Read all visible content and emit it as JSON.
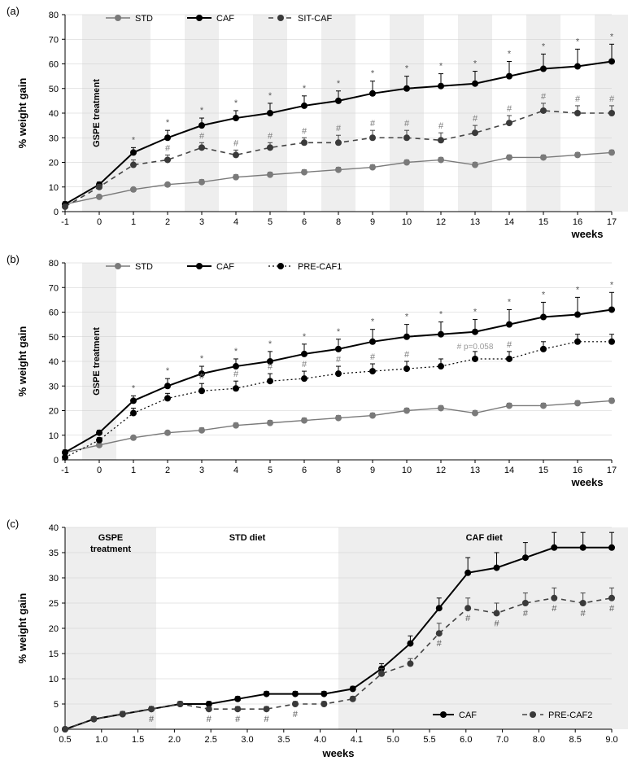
{
  "global": {
    "font_family": "Arial",
    "bg_color": "#ffffff",
    "axis_color": "#000000",
    "gridline_color": "#cccccc",
    "band_color": "#eeeeee",
    "marker_size": 4,
    "line_width": 1.8,
    "error_cap": 4
  },
  "panels": {
    "a": {
      "label": "(a)",
      "chart_type": "line",
      "x_title": "weeks",
      "y_title": "% weight gain",
      "x_ticks": [
        "-1",
        "0",
        "1",
        "2",
        "3",
        "4",
        "5",
        "6",
        "8",
        "9",
        "10",
        "12",
        "13",
        "14",
        "15",
        "16",
        "17"
      ],
      "y_ticks": [
        0,
        10,
        20,
        30,
        40,
        50,
        60,
        70,
        80
      ],
      "ylim": [
        0,
        80
      ],
      "alt_bands_start_idx": 1,
      "gspe_band_idx": [
        1,
        2
      ],
      "gspe_label": "GSPE treatment",
      "legend": [
        {
          "key": "STD",
          "label": "STD",
          "style": "solid",
          "color": "#7a7a7a",
          "weight": 1.4,
          "marker": "circle",
          "marker_fill": "#7a7a7a"
        },
        {
          "key": "CAF",
          "label": "CAF",
          "style": "solid",
          "color": "#000000",
          "weight": 2.0,
          "marker": "circle",
          "marker_fill": "#000000"
        },
        {
          "key": "SITCAF",
          "label": "SIT-CAF",
          "style": "dash",
          "color": "#444444",
          "weight": 1.6,
          "marker": "circle",
          "marker_fill": "#3a3a3a"
        }
      ],
      "series": {
        "STD": {
          "y": [
            3,
            6,
            9,
            11,
            12,
            14,
            15,
            16,
            17,
            18,
            20,
            21,
            19,
            22,
            22,
            23,
            24
          ],
          "err": [
            0.5,
            0.5,
            0.5,
            0.5,
            1,
            1,
            1,
            1,
            1,
            1,
            1,
            1,
            1,
            1,
            1,
            1,
            1
          ]
        },
        "CAF": {
          "y": [
            3,
            11,
            24,
            30,
            35,
            38,
            40,
            43,
            45,
            48,
            50,
            51,
            52,
            55,
            58,
            59,
            61
          ],
          "err": [
            1,
            1,
            2,
            3,
            3,
            3,
            4,
            4,
            4,
            5,
            5,
            5,
            5,
            6,
            6,
            7,
            7
          ]
        },
        "SITCAF": {
          "y": [
            2,
            10,
            19,
            21,
            26,
            23,
            26,
            28,
            28,
            30,
            30,
            29,
            32,
            36,
            41,
            40,
            40
          ],
          "err": [
            1,
            1,
            2,
            2,
            2,
            2,
            2,
            2,
            3,
            3,
            3,
            3,
            3,
            3,
            3,
            3,
            3
          ]
        }
      },
      "star_idx": [
        2,
        3,
        4,
        5,
        6,
        7,
        8,
        9,
        10,
        11,
        12,
        13,
        14,
        15,
        16
      ],
      "hash_idx": [
        3,
        4,
        5,
        6,
        7,
        8,
        9,
        10,
        11,
        12,
        13,
        14,
        15,
        16
      ],
      "star_char": "*",
      "hash_char": "#",
      "star_color": "#5a5a5a",
      "hash_color": "#7a7a7a"
    },
    "b": {
      "label": "(b)",
      "chart_type": "line",
      "x_title": "weeks",
      "y_title": "% weight gain",
      "x_ticks": [
        "-1",
        "0",
        "1",
        "2",
        "3",
        "4",
        "5",
        "6",
        "8",
        "9",
        "10",
        "12",
        "13",
        "14",
        "15",
        "16",
        "17"
      ],
      "y_ticks": [
        0,
        10,
        20,
        30,
        40,
        50,
        60,
        70,
        80
      ],
      "ylim": [
        0,
        80
      ],
      "gspe_band_idx": [
        1,
        2
      ],
      "gspe_label": "GSPE treatment",
      "legend": [
        {
          "key": "STD",
          "label": "STD",
          "style": "solid",
          "color": "#7a7a7a",
          "weight": 1.4,
          "marker": "circle",
          "marker_fill": "#7a7a7a"
        },
        {
          "key": "CAF",
          "label": "CAF",
          "style": "solid",
          "color": "#000000",
          "weight": 2.0,
          "marker": "circle",
          "marker_fill": "#000000"
        },
        {
          "key": "PRECAF1",
          "label": "PRE-CAF1",
          "style": "dot",
          "color": "#000000",
          "weight": 1.2,
          "marker": "circle",
          "marker_fill": "#000000"
        }
      ],
      "series": {
        "STD": {
          "y": [
            3,
            6,
            9,
            11,
            12,
            14,
            15,
            16,
            17,
            18,
            20,
            21,
            19,
            22,
            22,
            23,
            24
          ],
          "err": [
            0.5,
            0.5,
            0.5,
            0.5,
            1,
            1,
            1,
            1,
            1,
            1,
            1,
            1,
            1,
            1,
            1,
            1,
            1
          ]
        },
        "CAF": {
          "y": [
            3,
            11,
            24,
            30,
            35,
            38,
            40,
            43,
            45,
            48,
            50,
            51,
            52,
            55,
            58,
            59,
            61
          ],
          "err": [
            1,
            1,
            2,
            3,
            3,
            3,
            4,
            4,
            4,
            5,
            5,
            5,
            5,
            6,
            6,
            7,
            7
          ]
        },
        "PRECAF1": {
          "y": [
            1,
            8,
            19,
            25,
            28,
            29,
            32,
            33,
            35,
            36,
            37,
            38,
            41,
            41,
            45,
            48,
            48
          ],
          "err": [
            1,
            1,
            2,
            2,
            3,
            3,
            3,
            3,
            3,
            3,
            3,
            3,
            3,
            3,
            3,
            3,
            3
          ]
        }
      },
      "star_idx": [
        2,
        3,
        4,
        5,
        6,
        7,
        8,
        9,
        10,
        11,
        12,
        13,
        14,
        15,
        16
      ],
      "hash_idx": [
        4,
        5,
        6,
        7,
        8,
        9,
        10,
        13
      ],
      "pnote": {
        "idx": 12,
        "text": "# p=0.058",
        "color": "#9a9a9a"
      },
      "star_char": "*",
      "hash_char": "#",
      "star_color": "#5a5a5a",
      "hash_color": "#7a7a7a"
    },
    "c": {
      "label": "(c)",
      "chart_type": "line",
      "x_title": "weeks",
      "y_title": "% weight gain",
      "x_ticks": [
        "0.5",
        "1.0",
        "1.5",
        "2.0",
        "2.5",
        "3.0",
        "3.5",
        "4.0",
        "4.1",
        "5.0",
        "5.5",
        "6.0",
        "7.0",
        "8.0",
        "8.5",
        "9.0"
      ],
      "y_ticks": [
        0,
        5,
        10,
        15,
        20,
        25,
        30,
        35,
        40
      ],
      "ylim": [
        0,
        40
      ],
      "phase_shading": [
        {
          "from_idx": 0,
          "to_idx": 3,
          "label": "GSPE\ntreatment"
        },
        {
          "label_only": true,
          "from_idx": 3,
          "to_idx": 8,
          "label": "STD diet"
        },
        {
          "from_idx": 8,
          "to_idx": 16,
          "label": "CAF diet"
        }
      ],
      "legend": [
        {
          "key": "CAF",
          "label": "CAF",
          "style": "solid",
          "color": "#000000",
          "weight": 2.0,
          "marker": "circle",
          "marker_fill": "#000000"
        },
        {
          "key": "PRECAF2",
          "label": "PRE-CAF2",
          "style": "dash",
          "color": "#444444",
          "weight": 1.6,
          "marker": "circle",
          "marker_fill": "#3a3a3a"
        }
      ],
      "series": {
        "CAF": {
          "y": [
            0,
            2,
            3,
            4,
            5,
            5,
            6,
            7,
            7,
            7,
            8,
            12,
            17,
            24,
            31,
            32,
            34,
            36,
            36,
            36
          ],
          "err": [
            0,
            0.5,
            0.5,
            0.5,
            0.5,
            0.5,
            0.5,
            0.5,
            0.5,
            0.5,
            0.5,
            1,
            1.5,
            2,
            3,
            3,
            3,
            3,
            3,
            3
          ]
        },
        "PRECAF2": {
          "y": [
            0,
            2,
            3,
            4,
            5,
            4,
            4,
            4,
            5,
            5,
            6,
            11,
            13,
            19,
            24,
            23,
            25,
            26,
            25,
            26
          ],
          "err": [
            0,
            0.5,
            0.5,
            0.5,
            0.5,
            0.5,
            0.5,
            0.5,
            0.5,
            0.5,
            0.5,
            1,
            1,
            2,
            2,
            2,
            2,
            2,
            2,
            2
          ]
        }
      },
      "point_x_idx": [
        0,
        0.3,
        0.7,
        1,
        1.5,
        2,
        2.5,
        3,
        3.5,
        4,
        4.5,
        5,
        5.5,
        6,
        6.5,
        7,
        7.5,
        8,
        8.5,
        9
      ],
      "hash_points": [
        3,
        5,
        6,
        7,
        8,
        13,
        14,
        15,
        16,
        17,
        18,
        19
      ],
      "hash_char": "#",
      "hash_color": "#5a5a5a",
      "legend_pos": "bottom-right"
    }
  }
}
